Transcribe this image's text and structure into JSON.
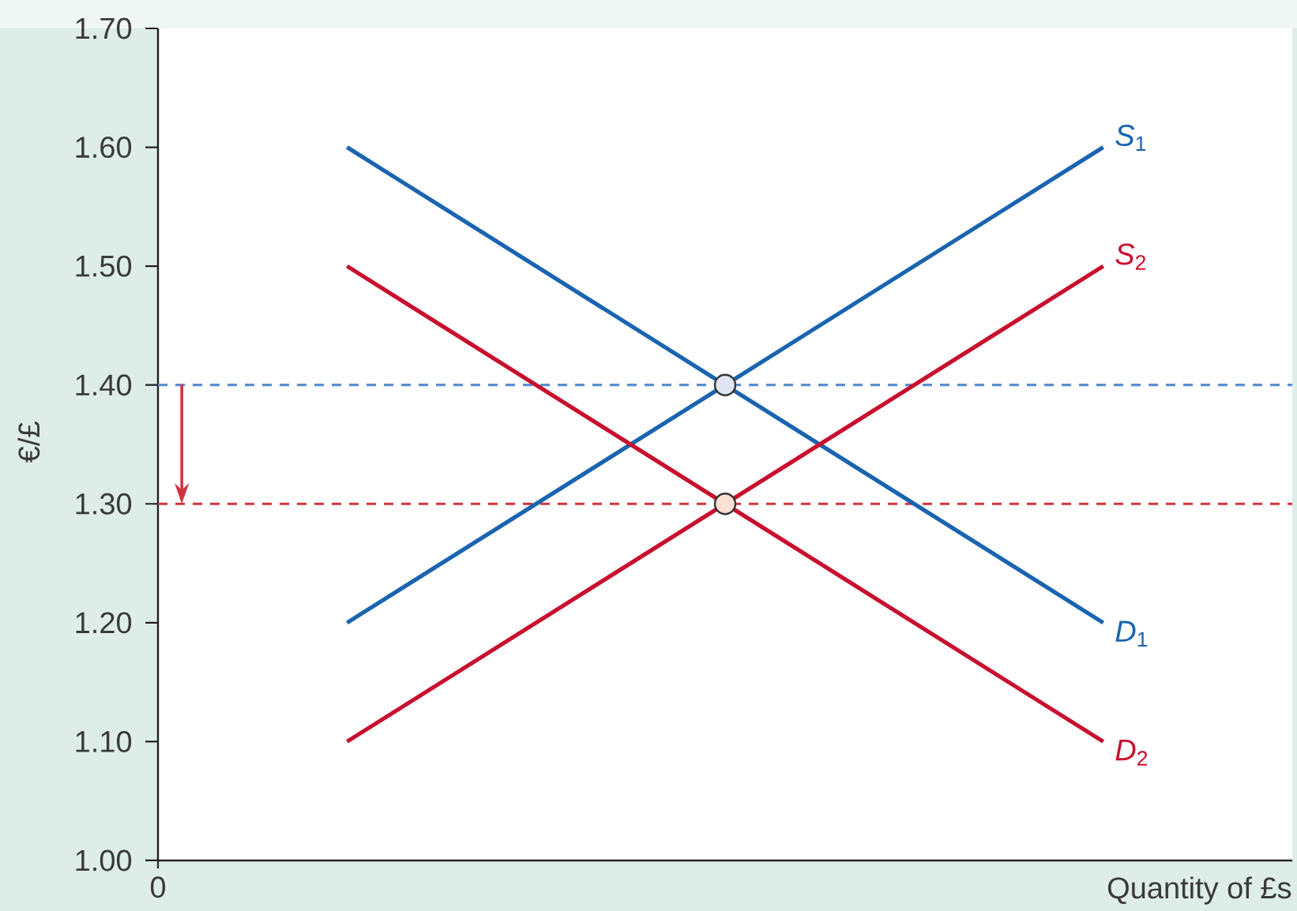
{
  "chart_data": {
    "type": "line",
    "xlabel": "Quantity of £s",
    "ylabel": "€/£",
    "annotations": [
      "0"
    ],
    "categories": [
      null,
      null,
      null
    ],
    "ylim": [
      1.0,
      1.7
    ],
    "yticks": [
      {
        "value": 1.0,
        "label": "1.00"
      },
      {
        "value": 1.1,
        "label": "1.10"
      },
      {
        "value": 1.2,
        "label": "1.20"
      },
      {
        "value": 1.3,
        "label": "1.30"
      },
      {
        "value": 1.4,
        "label": "1.40"
      },
      {
        "value": 1.5,
        "label": "1.50"
      },
      {
        "value": 1.6,
        "label": "1.60"
      },
      {
        "value": 1.7,
        "label": "1.70"
      }
    ],
    "marker": "none",
    "series": [
      {
        "name": "*S*$_{1}$",
        "color": "#1a64b0",
        "values": [
          1.2,
          1.4,
          1.6
        ]
      },
      {
        "name": "*D*$_{1}$",
        "color": "#1a64b0",
        "values": [
          1.6,
          1.4,
          1.2
        ]
      },
      {
        "name": "*S*$_{2}$",
        "color": "#c8102e",
        "values": [
          1.1,
          1.3,
          1.5
        ]
      },
      {
        "name": "*D*$_{2}$",
        "color": "#c8102e",
        "values": [
          1.5,
          1.3,
          1.1
        ]
      },
      {
        "type": "scatter",
        "marker": "circle",
        "color": "#dfe5f2",
        "values": [
          null,
          1.4,
          null
        ]
      },
      {
        "type": "scatter",
        "marker": "circle",
        "color": "#fbe0d3",
        "values": [
          null,
          1.3,
          null
        ]
      }
    ],
    "ref_lines": [
      {
        "axis": "y",
        "value": 1.4,
        "color": "#5a8fd0",
        "line_style": "dashed"
      },
      {
        "axis": "y",
        "value": 1.3,
        "color": "#d0343f",
        "line_style": "dashed"
      }
    ]
  }
}
